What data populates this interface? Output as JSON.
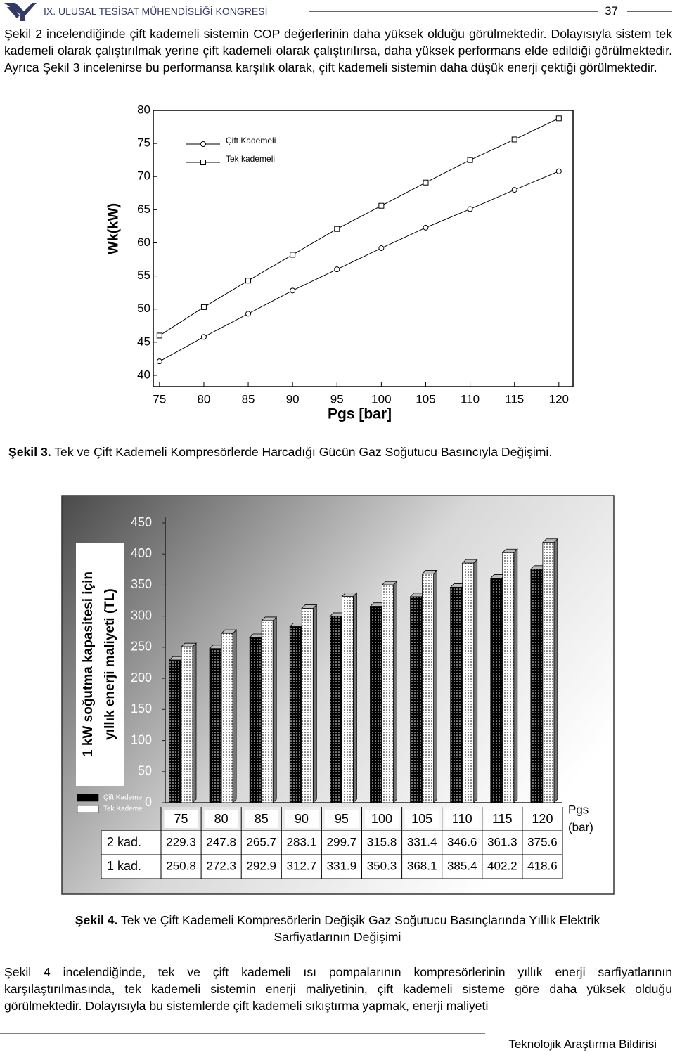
{
  "header": {
    "title": "IX. ULUSAL TESİSAT MÜHENDİSLİĞİ KONGRESİ",
    "page": "37"
  },
  "paragraphs": [
    "Şekil 2 incelendiğinde çift kademeli sistemin COP değerlerinin daha yüksek olduğu görülmektedir. Dolayısıyla sistem tek kademeli olarak çalıştırılmak yerine çift kademeli olarak çalıştırılırsa, daha yüksek performans elde edildiği görülmektedir. Ayrıca Şekil 3 incelenirse bu performansa karşılık olarak, çift kademeli sistemin daha düşük enerji çektiği görülmektedir.",
    "Şekil 4 incelendiğinde, tek ve çift kademeli ısı pompalarının kompresörlerinin yıllık enerji sarfiyatlarının karşılaştırılmasında, tek kademeli sistemin enerji maliyetinin, çift kademeli sisteme göre daha yüksek olduğu görülmektedir. Dolayısıyla bu sistemlerde çift kademeli sıkıştırma yapmak, enerji maliyeti"
  ],
  "figures": [
    {
      "label": "Şekil 3.",
      "caption": "Tek ve Çift Kademeli Kompresörlerde Harcadığı Gücün Gaz Soğutucu Basıncıyla Değişimi."
    },
    {
      "label": "Şekil 4.",
      "caption": "Tek ve Çift Kademeli Kompresörlerin Değişik Gaz Soğutucu Basınçlarında Yıllık Elektrik Sarfiyatlarının Değişimi"
    }
  ],
  "chart_data": [
    {
      "type": "line",
      "xlabel": "Pgs [bar]",
      "ylabel": "Wk(kW)",
      "x": [
        75,
        80,
        85,
        90,
        95,
        100,
        105,
        110,
        115,
        120
      ],
      "series": [
        {
          "name": "Çift Kademeli",
          "color": "#000000",
          "marker": "circle",
          "values": [
            42.1,
            45.8,
            49.3,
            52.8,
            56.0,
            59.2,
            62.3,
            65.1,
            68.0,
            70.8
          ]
        },
        {
          "name": "Tek kademeli",
          "color": "#000000",
          "marker": "square",
          "values": [
            46.0,
            50.3,
            54.3,
            58.2,
            62.1,
            65.6,
            69.1,
            72.5,
            75.6,
            78.8
          ]
        }
      ],
      "xlim": [
        74.3,
        121.6
      ],
      "ylim": [
        38.3,
        80
      ],
      "xticks": [
        75,
        80,
        85,
        90,
        95,
        100,
        105,
        110,
        115,
        120
      ],
      "yticks": [
        40,
        45,
        50,
        55,
        60,
        65,
        70,
        75,
        80
      ],
      "legend": "top-left"
    },
    {
      "type": "bar",
      "ylabel": [
        "1 kW soğutma kapasitesi için",
        "yıllık enerji maliyeti (TL)"
      ],
      "xlabel": [
        "Pgs",
        "(bar)"
      ],
      "categories": [
        "75",
        "80",
        "85",
        "90",
        "95",
        "100",
        "105",
        "110",
        "115",
        "120"
      ],
      "series": [
        {
          "name": "Çift Kademe",
          "color": "#000000",
          "table_label": "2 kad.",
          "values": [
            229.3,
            247.8,
            265.7,
            283.1,
            299.7,
            315.8,
            331.4,
            346.6,
            361.3,
            375.6
          ]
        },
        {
          "name": "Tek Kademe",
          "color": "#ffffff",
          "table_label": "1 kad.",
          "values": [
            250.8,
            272.3,
            292.9,
            312.7,
            331.9,
            350.3,
            368.1,
            385.4,
            402.2,
            418.6
          ]
        }
      ],
      "ylim": [
        0,
        450
      ],
      "yticks": [
        0,
        50,
        100,
        150,
        200,
        250,
        300,
        350,
        400,
        450
      ],
      "legend": "bottom-left"
    }
  ],
  "footer": "Teknolojik Araştırma Bildirisi"
}
